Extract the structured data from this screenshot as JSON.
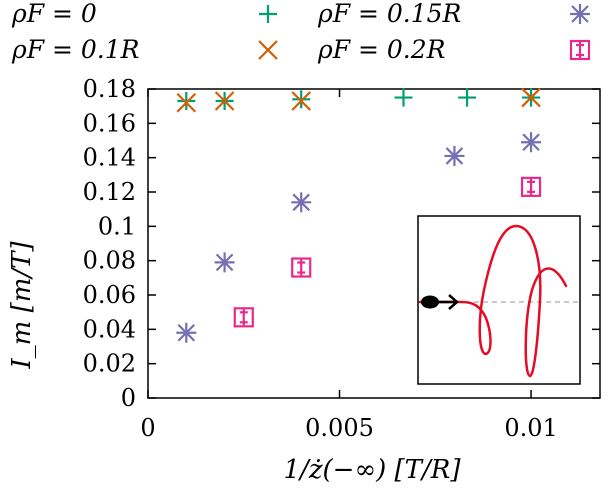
{
  "chart_data": {
    "type": "scatter",
    "title": "",
    "xlabel": "1/ż(−∞) [T/R]",
    "ylabel": "I_m [m/T]",
    "xlim": [
      0,
      0.0118
    ],
    "ylim": [
      0,
      0.18
    ],
    "x_ticks": [
      0,
      0.005,
      0.01
    ],
    "x_tick_labels": [
      "0",
      "0.005",
      "0.01"
    ],
    "y_ticks": [
      0,
      0.02,
      0.04,
      0.06,
      0.08,
      0.1,
      0.12,
      0.14,
      0.16,
      0.18
    ],
    "y_tick_labels": [
      "0",
      "0.02",
      "0.04",
      "0.06",
      "0.08",
      "0.1",
      "0.12",
      "0.14",
      "0.16",
      "0.18"
    ],
    "grid": false,
    "legend_position": "top",
    "series": [
      {
        "name": "ρF = 0",
        "marker": "plus",
        "color": "#009e73",
        "points": [
          [
            0.001,
            0.173
          ],
          [
            0.002,
            0.173
          ],
          [
            0.004,
            0.174
          ],
          [
            0.00667,
            0.175
          ],
          [
            0.00833,
            0.175
          ],
          [
            0.01,
            0.175
          ]
        ]
      },
      {
        "name": "ρF = 0.1R",
        "marker": "x",
        "color": "#d55e00",
        "points": [
          [
            0.001,
            0.172
          ],
          [
            0.002,
            0.173
          ],
          [
            0.004,
            0.173
          ],
          [
            0.01,
            0.175
          ]
        ]
      },
      {
        "name": "ρF = 0.15R",
        "marker": "star",
        "color": "#7570b3",
        "points": [
          [
            0.001,
            0.038
          ],
          [
            0.002,
            0.079
          ],
          [
            0.004,
            0.114
          ],
          [
            0.008,
            0.141
          ],
          [
            0.01,
            0.149
          ]
        ]
      },
      {
        "name": "ρF = 0.2R",
        "marker": "square-errorbar",
        "color": "#e7298a",
        "points": [
          [
            0.0025,
            0.047
          ],
          [
            0.004,
            0.076
          ],
          [
            0.01,
            0.123
          ]
        ]
      }
    ]
  }
}
